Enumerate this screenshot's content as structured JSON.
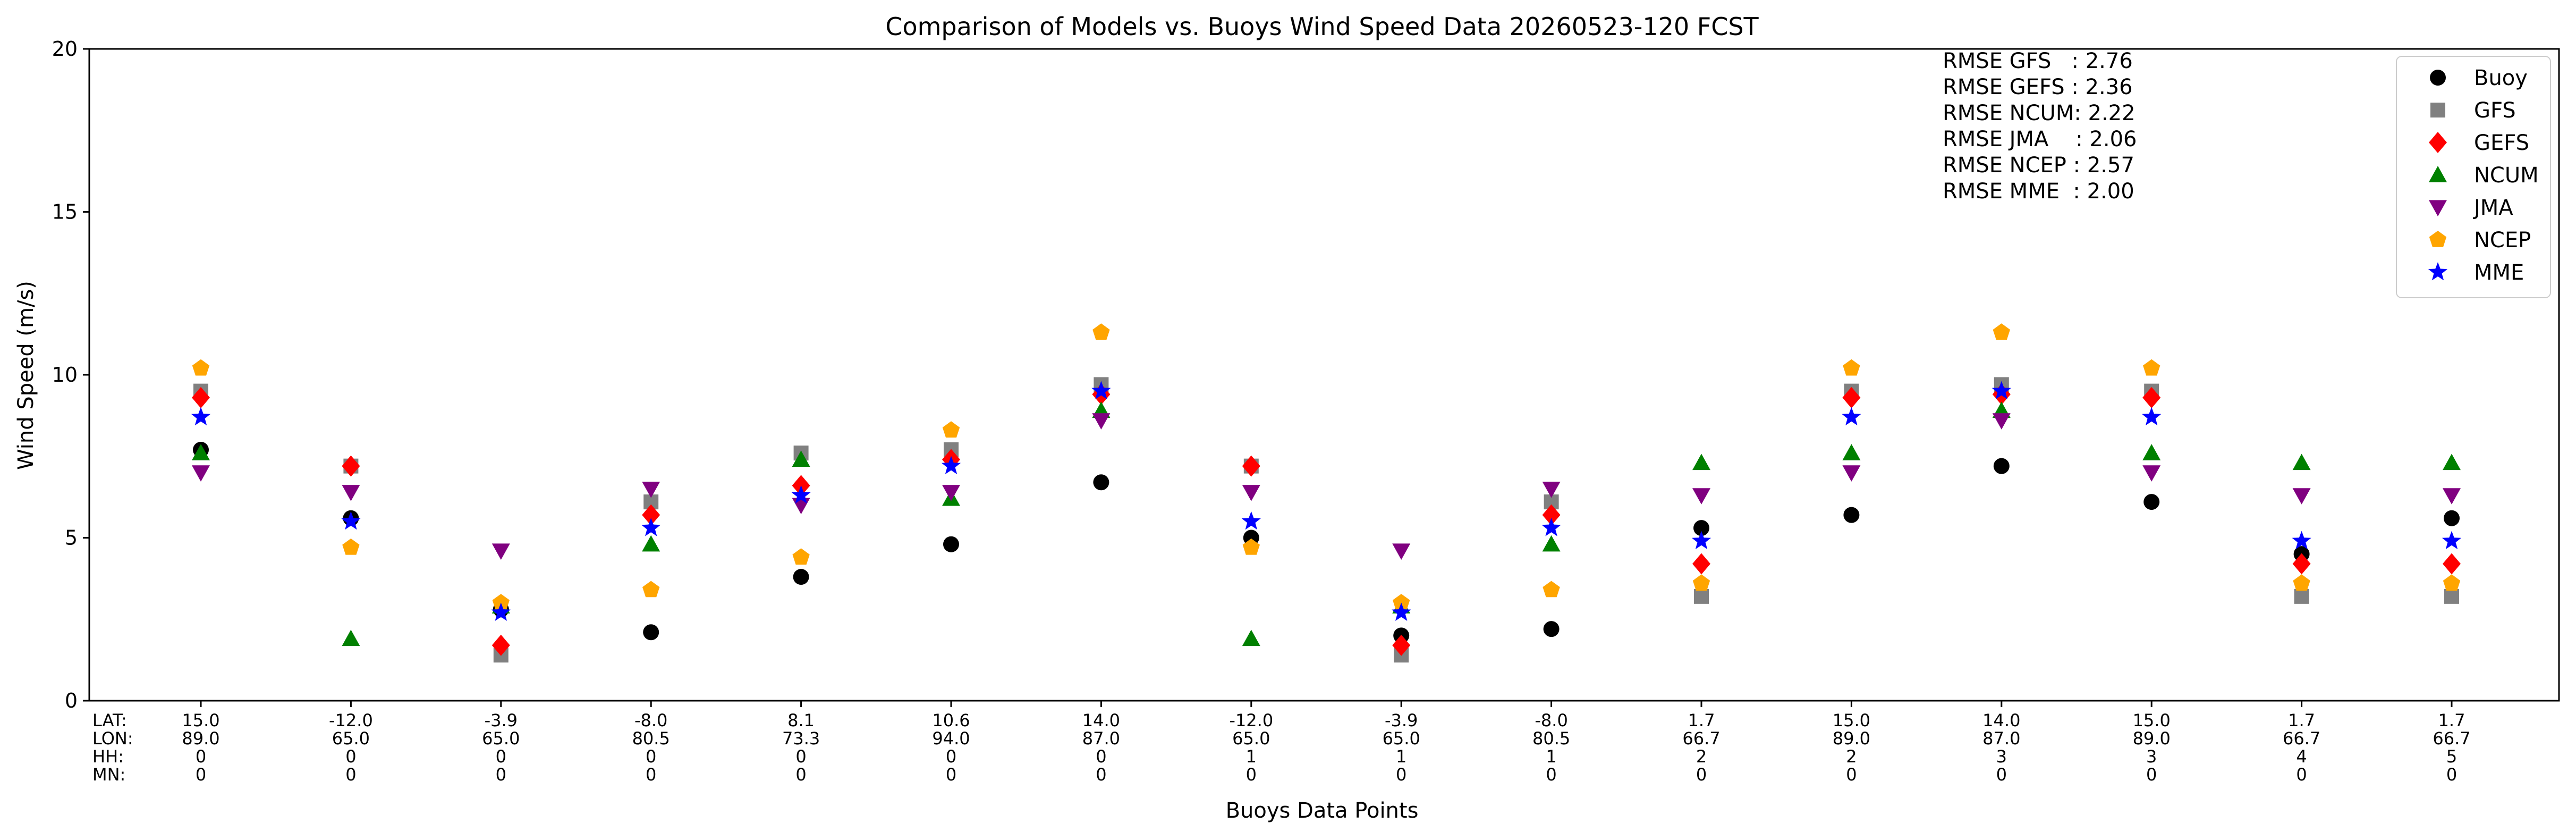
{
  "chart_data": {
    "type": "scatter",
    "title": "Comparison of Models vs. Buoys Wind Speed Data 20260523-120 FCST",
    "xlabel": "Buoys Data Points",
    "ylabel": "Wind Speed (m/s)",
    "ylim": [
      0,
      20
    ],
    "yticks": [
      0,
      5,
      10,
      15,
      20
    ],
    "grid": false,
    "legend_position": "top-right",
    "row_labels": [
      "LAT:",
      "LON:",
      "HH:",
      "MN:"
    ],
    "points": [
      {
        "lat": "15.0",
        "lon": "89.0",
        "hh": "0",
        "mn": "0"
      },
      {
        "lat": "-12.0",
        "lon": "65.0",
        "hh": "0",
        "mn": "0"
      },
      {
        "lat": "-3.9",
        "lon": "65.0",
        "hh": "0",
        "mn": "0"
      },
      {
        "lat": "-8.0",
        "lon": "80.5",
        "hh": "0",
        "mn": "0"
      },
      {
        "lat": "8.1",
        "lon": "73.3",
        "hh": "0",
        "mn": "0"
      },
      {
        "lat": "10.6",
        "lon": "94.0",
        "hh": "0",
        "mn": "0"
      },
      {
        "lat": "14.0",
        "lon": "87.0",
        "hh": "0",
        "mn": "0"
      },
      {
        "lat": "-12.0",
        "lon": "65.0",
        "hh": "1",
        "mn": "0"
      },
      {
        "lat": "-3.9",
        "lon": "65.0",
        "hh": "1",
        "mn": "0"
      },
      {
        "lat": "-8.0",
        "lon": "80.5",
        "hh": "1",
        "mn": "0"
      },
      {
        "lat": "1.7",
        "lon": "66.7",
        "hh": "2",
        "mn": "0"
      },
      {
        "lat": "15.0",
        "lon": "89.0",
        "hh": "2",
        "mn": "0"
      },
      {
        "lat": "14.0",
        "lon": "87.0",
        "hh": "3",
        "mn": "0"
      },
      {
        "lat": "15.0",
        "lon": "89.0",
        "hh": "3",
        "mn": "0"
      },
      {
        "lat": "1.7",
        "lon": "66.7",
        "hh": "4",
        "mn": "0"
      },
      {
        "lat": "1.7",
        "lon": "66.7",
        "hh": "5",
        "mn": "0"
      }
    ],
    "series": [
      {
        "name": "Buoy",
        "marker": "circle",
        "color": "#000000",
        "values": [
          7.7,
          5.6,
          2.8,
          2.1,
          3.8,
          4.8,
          6.7,
          5.0,
          2.0,
          2.2,
          5.3,
          5.7,
          7.2,
          6.1,
          4.5,
          5.6
        ]
      },
      {
        "name": "GFS",
        "marker": "square",
        "color": "#808080",
        "values": [
          9.5,
          7.2,
          1.4,
          6.1,
          7.6,
          7.7,
          9.7,
          7.2,
          1.4,
          6.1,
          3.2,
          9.5,
          9.7,
          9.5,
          3.2,
          3.2
        ]
      },
      {
        "name": "GEFS",
        "marker": "diamond",
        "color": "#ff0000",
        "values": [
          9.3,
          7.2,
          1.7,
          5.7,
          6.6,
          7.4,
          9.4,
          7.2,
          1.7,
          5.7,
          4.2,
          9.3,
          9.4,
          9.3,
          4.2,
          4.2
        ]
      },
      {
        "name": "NCUM",
        "marker": "triangle-up",
        "color": "#008000",
        "values": [
          7.6,
          1.9,
          2.9,
          4.8,
          7.4,
          6.2,
          8.9,
          1.9,
          2.9,
          4.8,
          7.3,
          7.6,
          8.9,
          7.6,
          7.3,
          7.3
        ]
      },
      {
        "name": "JMA",
        "marker": "triangle-down",
        "color": "#800080",
        "values": [
          7.0,
          6.4,
          4.6,
          6.5,
          6.0,
          6.4,
          8.6,
          6.4,
          4.6,
          6.5,
          6.3,
          7.0,
          8.6,
          7.0,
          6.3,
          6.3
        ]
      },
      {
        "name": "NCEP",
        "marker": "pentagon",
        "color": "#ffa500",
        "values": [
          10.2,
          4.7,
          3.0,
          3.4,
          4.4,
          8.3,
          11.3,
          4.7,
          3.0,
          3.4,
          3.6,
          10.2,
          11.3,
          10.2,
          3.6,
          3.6
        ]
      },
      {
        "name": "MME",
        "marker": "star",
        "color": "#0000ff",
        "values": [
          8.7,
          5.5,
          2.7,
          5.3,
          6.3,
          7.2,
          9.5,
          5.5,
          2.7,
          5.3,
          4.9,
          8.7,
          9.5,
          8.7,
          4.9,
          4.9
        ]
      }
    ],
    "rmse_lines": [
      "RMSE GFS   : 2.76",
      "RMSE GEFS : 2.36",
      "RMSE NCUM: 2.22",
      "RMSE JMA    : 2.06",
      "RMSE NCEP : 2.57",
      "RMSE MME  : 2.00"
    ]
  }
}
